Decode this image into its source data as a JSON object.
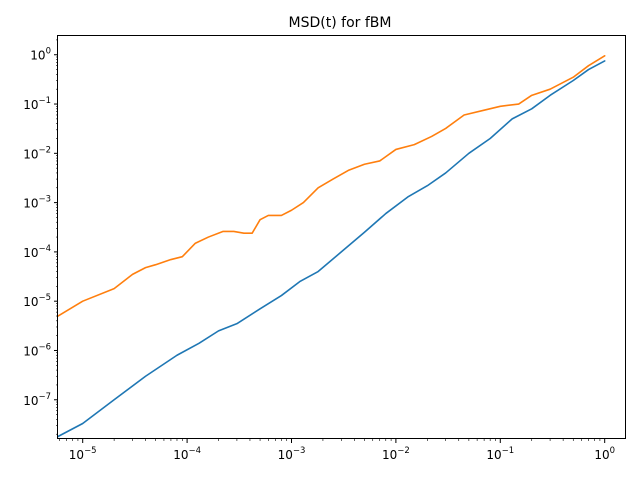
{
  "chart_data": {
    "type": "line",
    "title": "MSD(t) for fBM",
    "xlabel": "",
    "ylabel": "",
    "xscale": "log",
    "yscale": "log",
    "xlim": [
      5.8e-06,
      1.6
    ],
    "ylim": [
      1.6e-08,
      2.4
    ],
    "grid": false,
    "legend": "none",
    "x_ticks": [
      {
        "value": 1e-05,
        "base": "10",
        "exp": "−5"
      },
      {
        "value": 0.0001,
        "base": "10",
        "exp": "−4"
      },
      {
        "value": 0.001,
        "base": "10",
        "exp": "−3"
      },
      {
        "value": 0.01,
        "base": "10",
        "exp": "−2"
      },
      {
        "value": 0.1,
        "base": "10",
        "exp": "−1"
      },
      {
        "value": 1,
        "base": "10",
        "exp": "0"
      }
    ],
    "y_ticks": [
      {
        "value": 1e-07,
        "base": "10",
        "exp": "−7"
      },
      {
        "value": 1e-06,
        "base": "10",
        "exp": "−6"
      },
      {
        "value": 1e-05,
        "base": "10",
        "exp": "−5"
      },
      {
        "value": 0.0001,
        "base": "10",
        "exp": "−4"
      },
      {
        "value": 0.001,
        "base": "10",
        "exp": "−3"
      },
      {
        "value": 0.01,
        "base": "10",
        "exp": "−2"
      },
      {
        "value": 0.1,
        "base": "10",
        "exp": "−1"
      },
      {
        "value": 1,
        "base": "10",
        "exp": "0"
      }
    ],
    "series": [
      {
        "color": "#1f77b4",
        "x": [
          5.8e-06,
          1e-05,
          2e-05,
          4e-05,
          8e-05,
          0.00013,
          0.0002,
          0.0003,
          0.0005,
          0.0008,
          0.0012,
          0.0018,
          0.003,
          0.005,
          0.008,
          0.013,
          0.02,
          0.03,
          0.05,
          0.08,
          0.13,
          0.2,
          0.3,
          0.5,
          0.7,
          1
        ],
        "y": [
          1.8e-08,
          3.3e-08,
          1e-07,
          3e-07,
          8e-07,
          1.4e-06,
          2.5e-06,
          3.5e-06,
          7e-06,
          1.3e-05,
          2.5e-05,
          4e-05,
          0.0001,
          0.00025,
          0.0006,
          0.0013,
          0.0022,
          0.004,
          0.01,
          0.02,
          0.05,
          0.08,
          0.15,
          0.3,
          0.5,
          0.75
        ]
      },
      {
        "color": "#ff7f0e",
        "x": [
          5.8e-06,
          1e-05,
          2e-05,
          3e-05,
          4e-05,
          5e-05,
          7e-05,
          9e-05,
          0.00012,
          0.00016,
          0.00022,
          0.00028,
          0.00035,
          0.00042,
          0.0005,
          0.0006,
          0.0008,
          0.001,
          0.0013,
          0.0018,
          0.0025,
          0.0035,
          0.005,
          0.007,
          0.01,
          0.015,
          0.022,
          0.03,
          0.045,
          0.07,
          0.1,
          0.15,
          0.2,
          0.3,
          0.5,
          0.7,
          1
        ],
        "y": [
          5e-06,
          1e-05,
          1.8e-05,
          3.5e-05,
          4.8e-05,
          5.5e-05,
          7e-05,
          8e-05,
          0.00015,
          0.0002,
          0.00026,
          0.00026,
          0.00024,
          0.00024,
          0.00045,
          0.00055,
          0.00055,
          0.0007,
          0.001,
          0.002,
          0.003,
          0.0045,
          0.006,
          0.007,
          0.012,
          0.015,
          0.022,
          0.032,
          0.06,
          0.075,
          0.09,
          0.1,
          0.15,
          0.2,
          0.35,
          0.6,
          0.95
        ]
      }
    ]
  }
}
